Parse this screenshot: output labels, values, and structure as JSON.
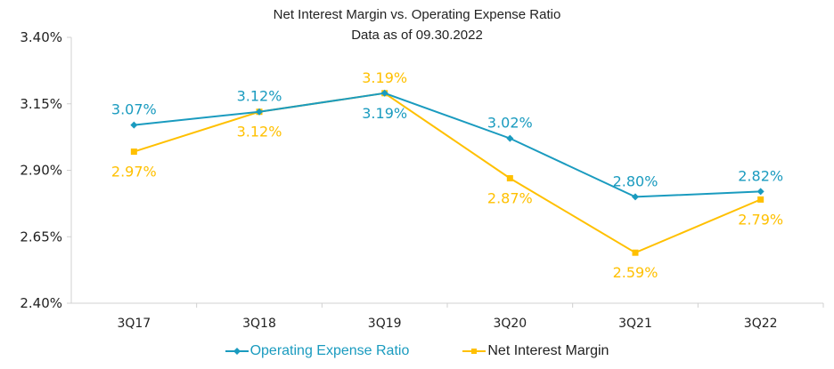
{
  "chart_data": {
    "type": "line",
    "title": "Net Interest Margin vs. Operating Expense Ratio",
    "subtitle": "Data as of 09.30.2022",
    "categories": [
      "3Q17",
      "3Q18",
      "3Q19",
      "3Q20",
      "3Q21",
      "3Q22"
    ],
    "ylim": [
      2.4,
      3.4
    ],
    "yticks": [
      2.4,
      2.65,
      2.9,
      3.15,
      3.4
    ],
    "ytick_labels": [
      "2.40%",
      "2.65%",
      "2.90%",
      "3.15%",
      "3.40%"
    ],
    "grid": false,
    "legend": "bottom",
    "series": [
      {
        "name": "Operating Expense Ratio",
        "color": "#1a9bbf",
        "values": [
          3.07,
          3.12,
          3.19,
          3.02,
          2.8,
          2.82
        ],
        "labels": [
          "3.07%",
          "3.12%",
          "3.19%",
          "3.02%",
          "2.80%",
          "2.82%"
        ]
      },
      {
        "name": "Net Interest Margin",
        "color": "#ffc000",
        "values": [
          2.97,
          3.12,
          3.19,
          2.87,
          2.59,
          2.79
        ],
        "labels": [
          "2.97%",
          "3.12%",
          "3.19%",
          "2.87%",
          "2.59%",
          "2.79%"
        ]
      }
    ]
  }
}
